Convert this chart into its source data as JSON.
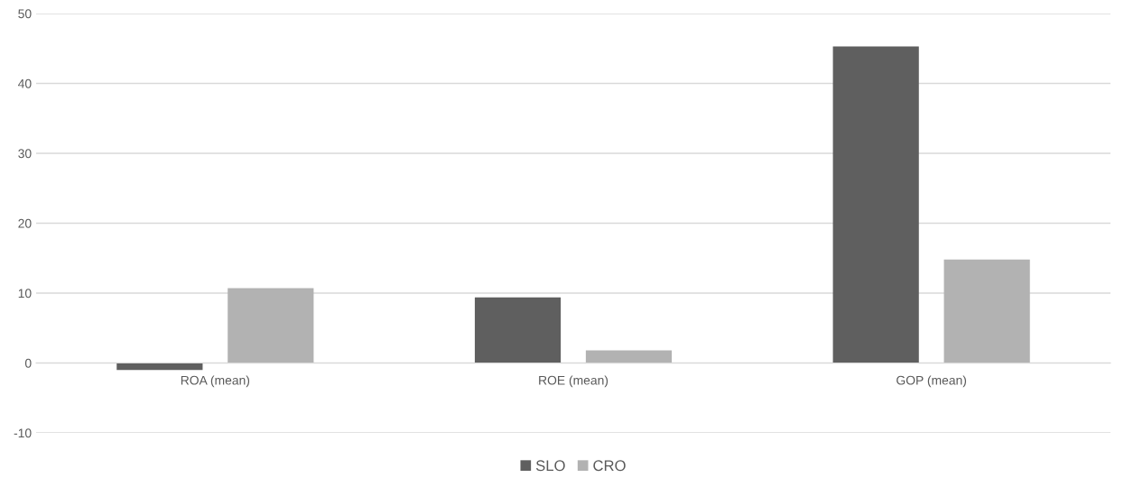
{
  "chart_data": {
    "type": "bar",
    "categories": [
      "ROA (mean)",
      "ROE (mean)",
      "GOP (mean)"
    ],
    "series": [
      {
        "name": "SLO",
        "color": "#5f5f5f",
        "values": [
          -1.0,
          9.4,
          45.3
        ]
      },
      {
        "name": "CRO",
        "color": "#b2b2b2",
        "values": [
          10.7,
          1.8,
          14.8
        ]
      }
    ],
    "ylim": [
      -10,
      50
    ],
    "yticks": [
      -10,
      0,
      10,
      20,
      30,
      40,
      50
    ],
    "grid": "y",
    "legend": "bottom"
  }
}
